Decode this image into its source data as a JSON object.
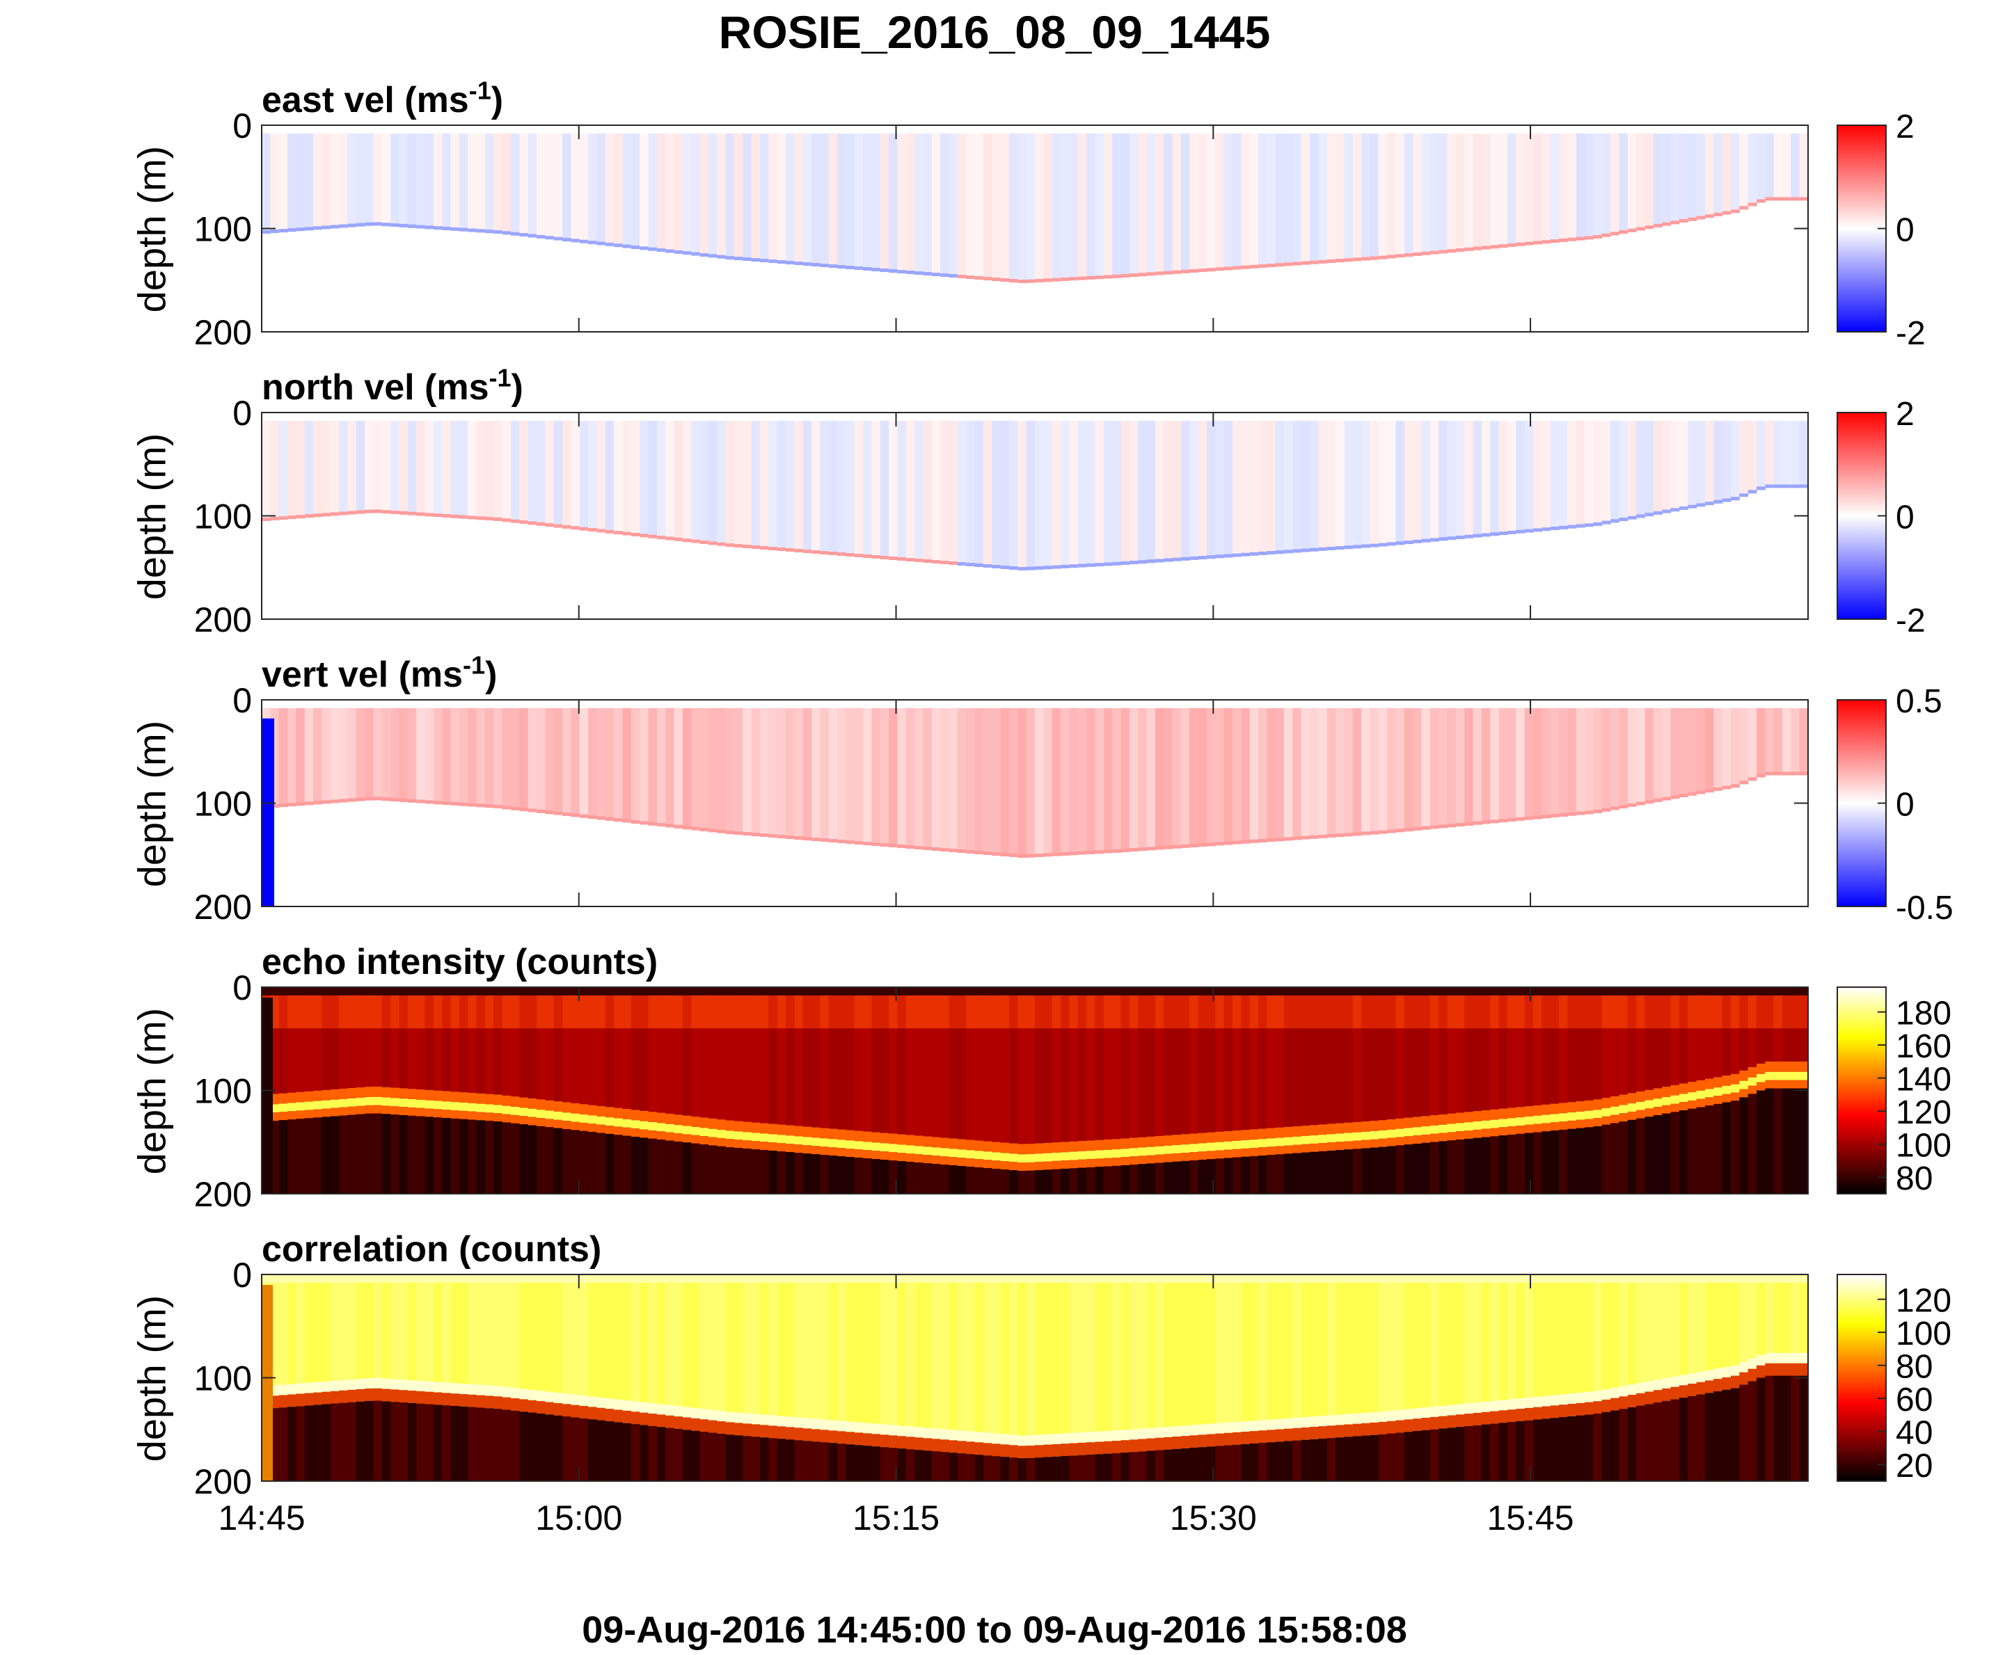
{
  "title": "ROSIE_2016_08_09_1445",
  "footer": "09-Aug-2016 14:45:00 to 09-Aug-2016 15:58:08",
  "colors": {
    "velocity_positive": "#ff0000",
    "velocity_negative": "#0000ff",
    "velocity_zero": "#ffffff",
    "hot_low": "#000000",
    "hot_mid": "#ff0000",
    "hot_high": "#ffff00",
    "hot_top": "#ffffff"
  },
  "chart_data": [
    {
      "type": "heatmap",
      "title": "east vel (ms",
      "title_sup": "-1",
      "title_close": ")",
      "ylabel": "depth (m)",
      "yticks": [
        "0",
        "100",
        "200"
      ],
      "xticks": [
        "14:45",
        "15:00",
        "15:15",
        "15:30",
        "15:45"
      ],
      "ylim": [
        200,
        0
      ],
      "colormap": "blue-white-red",
      "clim": [
        -2,
        2
      ],
      "colorbar_ticks": [
        "2",
        "0",
        "-2"
      ]
    },
    {
      "type": "heatmap",
      "title": "north vel (ms",
      "title_sup": "-1",
      "title_close": ")",
      "ylabel": "depth (m)",
      "yticks": [
        "0",
        "100",
        "200"
      ],
      "xticks": [
        "14:45",
        "15:00",
        "15:15",
        "15:30",
        "15:45"
      ],
      "ylim": [
        200,
        0
      ],
      "colormap": "blue-white-red",
      "clim": [
        -2,
        2
      ],
      "colorbar_ticks": [
        "2",
        "0",
        "-2"
      ]
    },
    {
      "type": "heatmap",
      "title": "vert vel (ms",
      "title_sup": "-1",
      "title_close": ")",
      "ylabel": "depth (m)",
      "yticks": [
        "0",
        "100",
        "200"
      ],
      "xticks": [
        "14:45",
        "15:00",
        "15:15",
        "15:30",
        "15:45"
      ],
      "ylim": [
        200,
        0
      ],
      "colormap": "blue-white-red",
      "clim": [
        -0.5,
        0.5
      ],
      "colorbar_ticks": [
        "0.5",
        "0",
        "-0.5"
      ]
    },
    {
      "type": "heatmap",
      "title": "echo intensity (counts)",
      "ylabel": "depth (m)",
      "yticks": [
        "0",
        "100",
        "200"
      ],
      "xticks": [
        "14:45",
        "15:00",
        "15:15",
        "15:30",
        "15:45"
      ],
      "ylim": [
        200,
        0
      ],
      "colormap": "hot",
      "clim": [
        70,
        195
      ],
      "colorbar_ticks": [
        "180",
        "160",
        "140",
        "120",
        "100",
        "80"
      ]
    },
    {
      "type": "heatmap",
      "title": "correlation (counts)",
      "ylabel": "depth (m)",
      "yticks": [
        "0",
        "100",
        "200"
      ],
      "xticks": [
        "14:45",
        "15:00",
        "15:15",
        "15:30",
        "15:45"
      ],
      "ylim": [
        200,
        0
      ],
      "colormap": "hot",
      "clim": [
        10,
        135
      ],
      "colorbar_ticks": [
        "120",
        "100",
        "80",
        "60",
        "40",
        "20"
      ]
    }
  ]
}
